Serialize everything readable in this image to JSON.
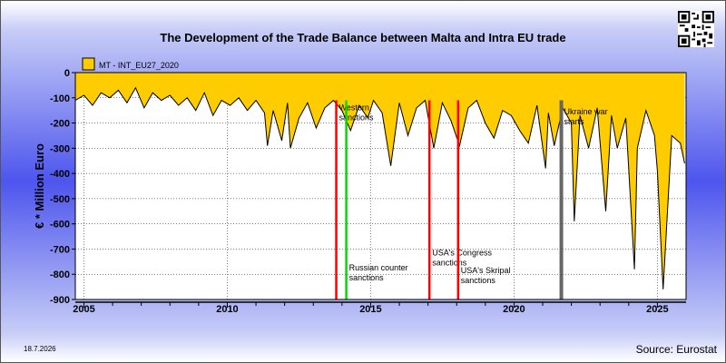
{
  "title": "The Development of the Trade Balance between Malta and Intra EU trade",
  "date_label": "18.7.2026",
  "source_label": "Source: Eurostat",
  "colors": {
    "fill": "#FFCC00",
    "line": "#000000",
    "red": "#FF0000",
    "green": "#00DD00",
    "gray": "#666666"
  },
  "chart_data": {
    "type": "area",
    "title": "The Development of the Trade Balance between Malta and Intra EU trade",
    "ylabel": "€ * Million Euro",
    "xlabel": "",
    "ylim": [
      -900,
      0
    ],
    "xlim": [
      2004.7,
      2026.0
    ],
    "yticks": [
      0,
      -100,
      -200,
      -300,
      -400,
      -500,
      -600,
      -700,
      -800,
      -900
    ],
    "ytick_labels": [
      "0",
      "-100",
      "-200",
      "-300",
      "-400",
      "-500",
      "-600",
      "-700",
      "-800",
      "-900"
    ],
    "xticks": [
      2005,
      2010,
      2015,
      2020,
      2025
    ],
    "xtick_labels": [
      "2005",
      "2010",
      "2015",
      "2020",
      "2025"
    ],
    "grid": true,
    "legend": {
      "position": "top-left",
      "entries": [
        "MT - INT_EU27_2020"
      ]
    },
    "series": [
      {
        "name": "MT - INT_EU27_2020",
        "x": [
          2004.7,
          2005.0,
          2005.3,
          2005.6,
          2005.9,
          2006.2,
          2006.5,
          2006.8,
          2007.1,
          2007.4,
          2007.7,
          2008.0,
          2008.3,
          2008.6,
          2008.9,
          2009.2,
          2009.5,
          2009.8,
          2010.1,
          2010.4,
          2010.7,
          2011.0,
          2011.3,
          2011.4,
          2011.6,
          2011.9,
          2012.1,
          2012.2,
          2012.5,
          2012.8,
          2013.1,
          2013.4,
          2013.7,
          2014.0,
          2014.3,
          2014.6,
          2014.9,
          2015.1,
          2015.4,
          2015.7,
          2016.0,
          2016.3,
          2016.6,
          2016.9,
          2017.2,
          2017.5,
          2017.8,
          2018.1,
          2018.4,
          2018.7,
          2019.0,
          2019.3,
          2019.6,
          2019.9,
          2020.2,
          2020.5,
          2020.8,
          2021.1,
          2021.2,
          2021.4,
          2021.7,
          2022.0,
          2022.1,
          2022.3,
          2022.6,
          2022.9,
          2023.2,
          2023.4,
          2023.6,
          2023.9,
          2024.2,
          2024.3,
          2024.6,
          2024.9,
          2025.0,
          2025.2,
          2025.5,
          2025.8,
          2025.95
        ],
        "y": [
          -110,
          -90,
          -130,
          -80,
          -100,
          -70,
          -120,
          -60,
          -140,
          -80,
          -110,
          -90,
          -130,
          -100,
          -150,
          -80,
          -170,
          -110,
          -130,
          -100,
          -150,
          -110,
          -160,
          -290,
          -150,
          -270,
          -120,
          -300,
          -180,
          -120,
          -220,
          -140,
          -110,
          -150,
          -230,
          -130,
          -180,
          -110,
          -160,
          -370,
          -120,
          -250,
          -140,
          -110,
          -300,
          -120,
          -190,
          -290,
          -140,
          -110,
          -200,
          -260,
          -150,
          -170,
          -230,
          -280,
          -130,
          -380,
          -160,
          -290,
          -140,
          -200,
          -590,
          -170,
          -300,
          -140,
          -550,
          -170,
          -300,
          -180,
          -780,
          -300,
          -150,
          -250,
          -390,
          -860,
          -250,
          -280,
          -360
        ]
      }
    ],
    "vlines": [
      {
        "x": 2013.8,
        "color": "red",
        "label": "Western sanctions",
        "label_y": -150
      },
      {
        "x": 2014.15,
        "color": "green",
        "label": "Russian counter sanctions",
        "label_y": -785
      },
      {
        "x": 2017.05,
        "color": "red",
        "label": "USA's Congress sanctions",
        "label_y": -725
      },
      {
        "x": 2018.05,
        "color": "red",
        "label": "USA's Skripal sanctions",
        "label_y": -795
      },
      {
        "x": 2021.65,
        "color": "gray",
        "label": "Ukraine war starts",
        "label_y": -165
      }
    ]
  }
}
